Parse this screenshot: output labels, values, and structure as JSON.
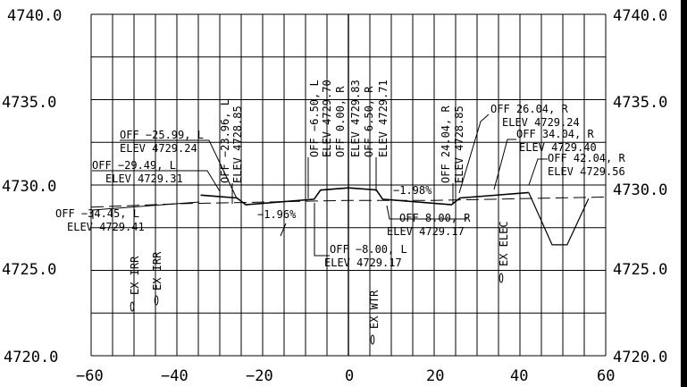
{
  "drawing": {
    "x_axis": {
      "min": -60,
      "max": 60,
      "step": 20,
      "labels": [
        "−60",
        "−40",
        "−20",
        "0",
        "20",
        "40",
        "60"
      ]
    },
    "y_axis": {
      "min": 4720,
      "max": 4740,
      "step": 5,
      "labels": [
        "4720.0",
        "4725.0",
        "4730.0",
        "4735.0",
        "4740.0"
      ]
    },
    "proposed_section": [
      [
        -34.45,
        4729.41
      ],
      [
        -29.49,
        4729.31
      ],
      [
        -25.99,
        4729.24
      ],
      [
        -23.96,
        4728.85
      ],
      [
        -8.0,
        4729.17
      ],
      [
        -6.5,
        4729.7
      ],
      [
        0.0,
        4729.83
      ],
      [
        6.5,
        4729.71
      ],
      [
        8.0,
        4729.17
      ],
      [
        24.04,
        4728.85
      ],
      [
        26.04,
        4729.24
      ],
      [
        34.04,
        4729.4
      ],
      [
        42.04,
        4729.56
      ]
    ],
    "ditch": [
      [
        42.04,
        4729.56
      ],
      [
        47.5,
        4726.5
      ],
      [
        51.0,
        4726.5
      ],
      [
        56.0,
        4729.2
      ]
    ],
    "existing_ground": [
      [
        -60,
        4728.7
      ],
      [
        -40,
        4728.9
      ],
      [
        -20,
        4729.0
      ],
      [
        0,
        4729.1
      ],
      [
        20,
        4729.1
      ],
      [
        40,
        4729.2
      ],
      [
        60,
        4729.3
      ]
    ],
    "callouts": {
      "l1": {
        "off": "OFF −25.99, L",
        "elev": "ELEV 4729.24"
      },
      "l2": {
        "off": "OFF −29.49, L",
        "elev": "ELEV 4729.31"
      },
      "l3": {
        "off": "OFF −34.45, L",
        "elev": "ELEV 4729.41"
      },
      "l4": {
        "off": "OFF −8.00, L",
        "elev": "ELEV 4729.17"
      },
      "r1": {
        "off": "OFF 8.00, R",
        "elev": "ELEV 4729.17"
      },
      "r2": {
        "off": "OFF 26.04, R",
        "elev": "ELEV 4729.24"
      },
      "r3": {
        "off": "OFF 34.04, R",
        "elev": "ELEV 4729.40"
      },
      "r4": {
        "off": "OFF 42.04, R",
        "elev": "ELEV 4729.56"
      }
    },
    "vertical_callouts": {
      "v1": {
        "off": "OFF −23.96, L",
        "elev": "ELEV 4728.85"
      },
      "v2": {
        "off": "OFF −6.50, L",
        "elev": "ELEV 4729.70"
      },
      "v3": {
        "off": "OFF 0.00, R",
        "elev": "ELEV 4729.83"
      },
      "v4": {
        "off": "OFF 6.50, R",
        "elev": "ELEV 4729.71"
      },
      "v5": {
        "off": "OFF 24.04, R",
        "elev": "ELEV 4728.85"
      }
    },
    "slopes": {
      "left": "−1.96%",
      "right": "−1.98%"
    },
    "utilities": {
      "irr1": "EX IRR",
      "irr2": "EX IRR",
      "wtr": "EX WTR",
      "elec": "EX ELEC"
    }
  }
}
